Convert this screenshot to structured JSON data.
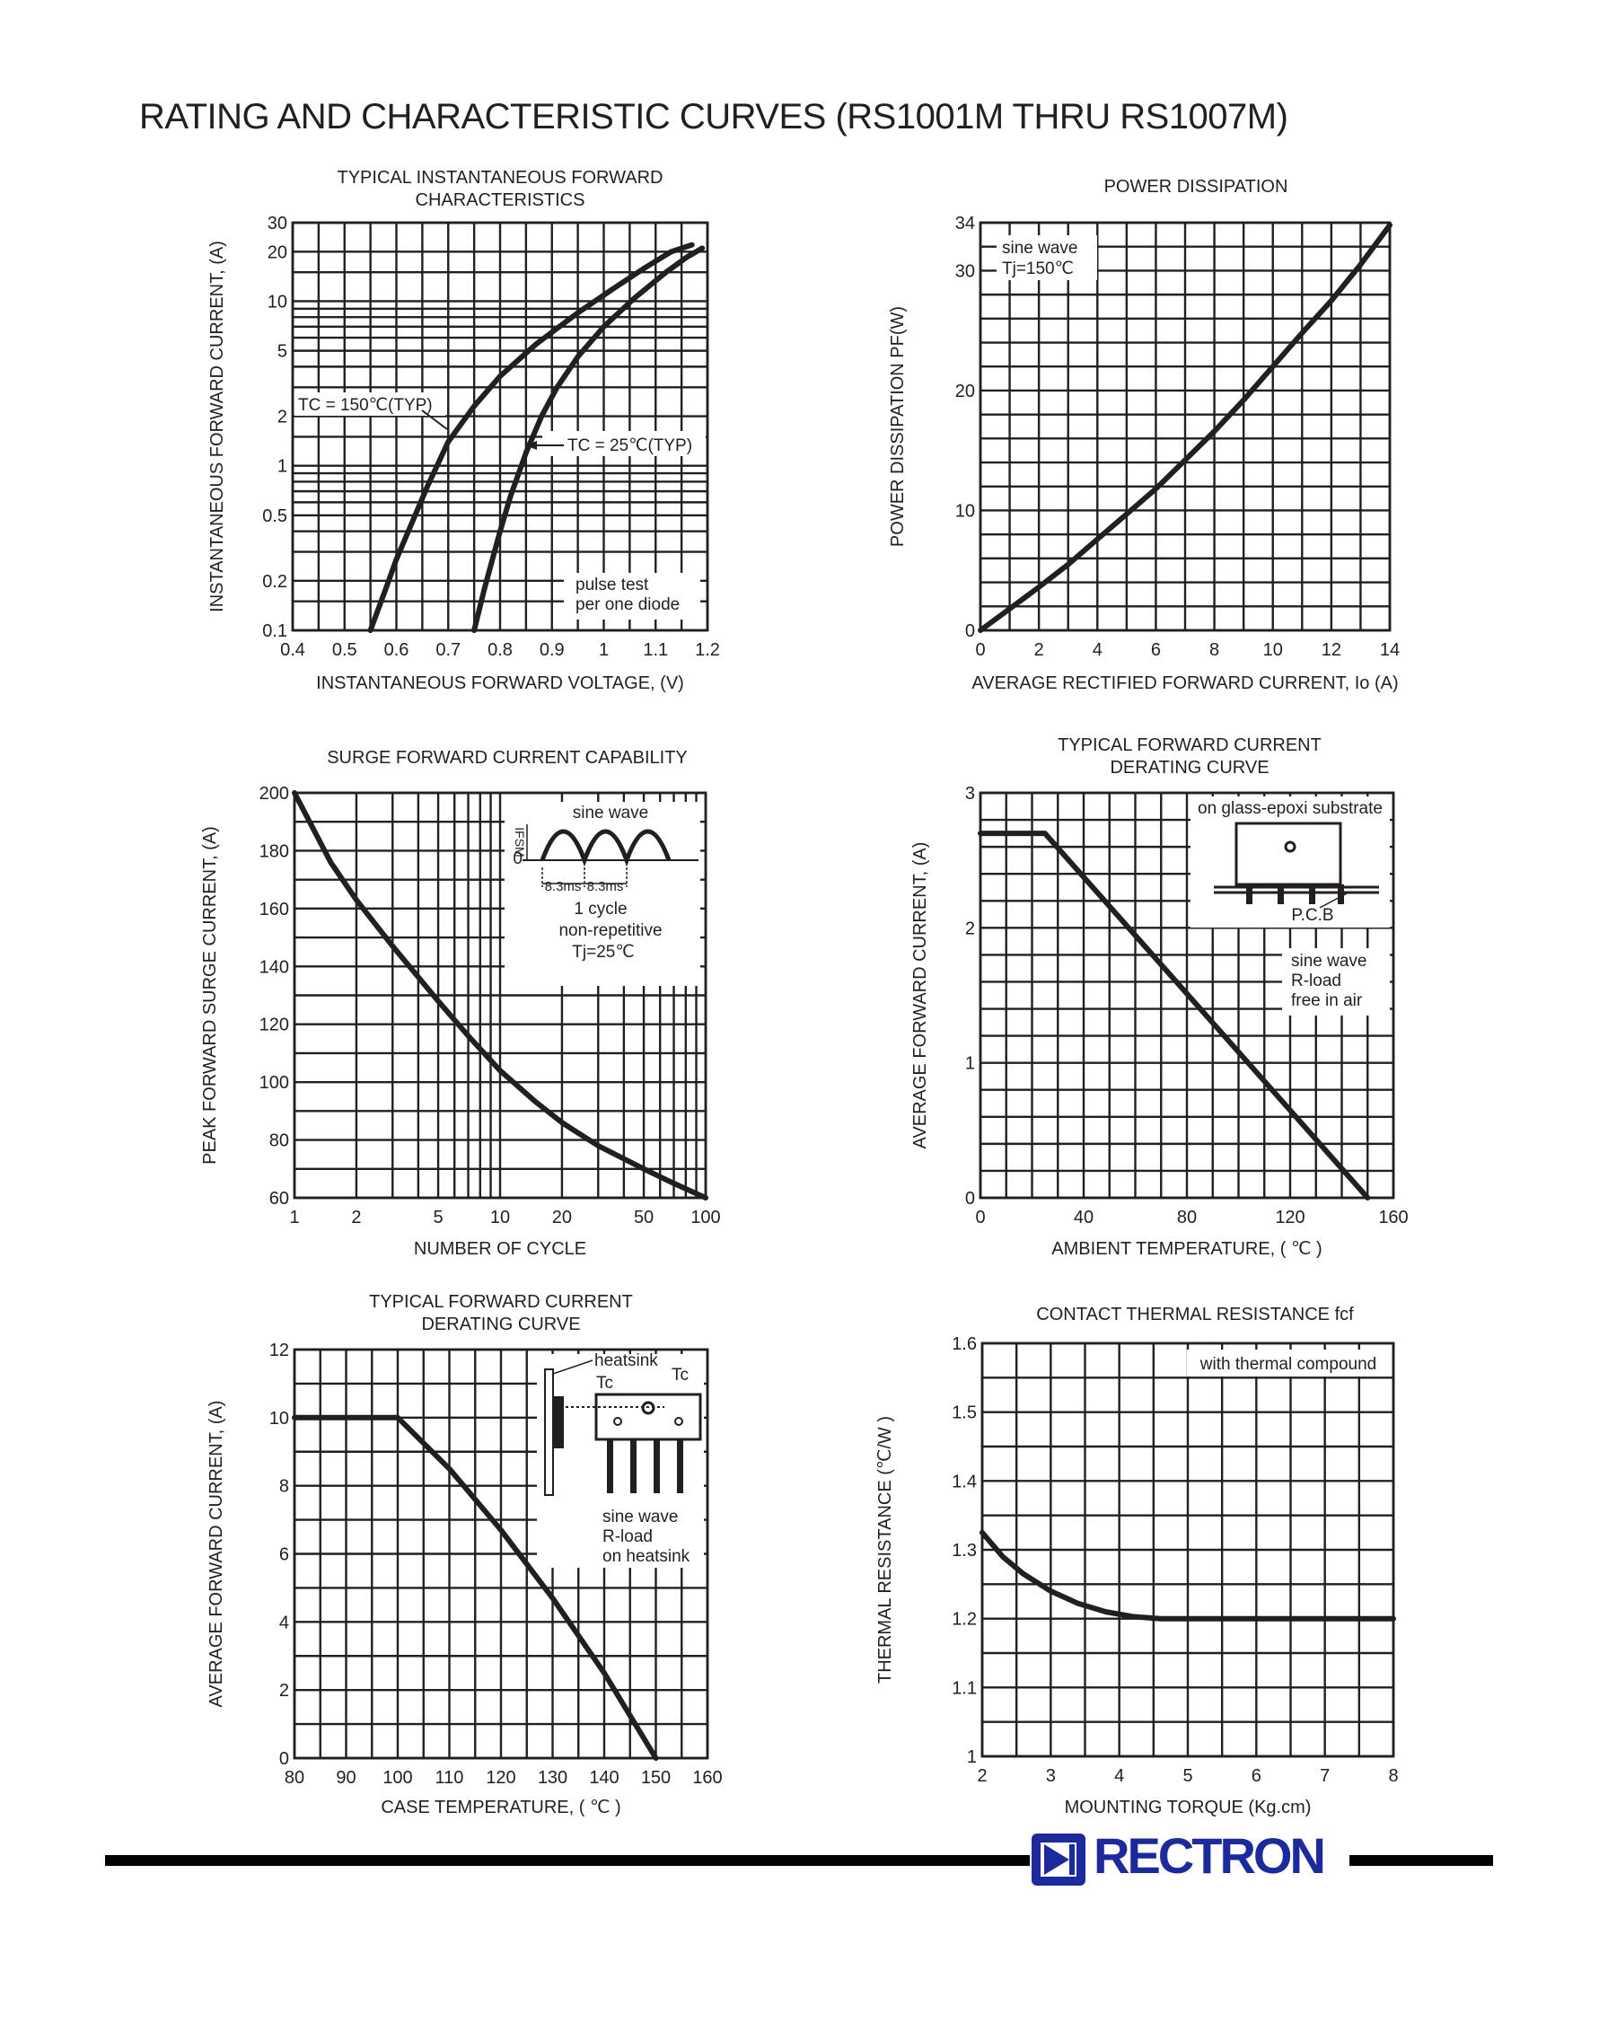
{
  "page": {
    "title": "RATING  AND CHARACTERISTIC CURVES (RS1001M THRU RS1007M)",
    "brand": "RECTRON",
    "brand_color": "#1d2a9e"
  },
  "chart_data": [
    {
      "id": "c1",
      "type": "line",
      "title_lines": [
        "TYPICAL INSTANTANEOUS FORWARD",
        "CHARACTERISTICS"
      ],
      "xlabel": "INSTANTANEOUS FORWARD VOLTAGE, (V)",
      "ylabel": "INSTANTANEOUS FORWARD CURRENT, (A)",
      "xscale": "linear",
      "yscale": "log",
      "xlim": [
        0.4,
        1.2
      ],
      "ylim": [
        0.1,
        30
      ],
      "xticks": [
        0.4,
        0.5,
        0.6,
        0.7,
        0.8,
        0.9,
        1.0,
        1.1,
        1.2
      ],
      "xtick_labels": [
        "0.4",
        "0.5",
        "0.6",
        "0.7",
        "0.8",
        "0.9",
        "1",
        "1.1",
        "1.2"
      ],
      "yticks": [
        0.1,
        0.2,
        0.5,
        1,
        2,
        5,
        10,
        20,
        30
      ],
      "ytick_labels": [
        "0.1",
        "0.2",
        "0.5",
        "1",
        "2",
        "5",
        "10",
        "20",
        "30"
      ],
      "vgrid": [
        0.4,
        0.45,
        0.5,
        0.55,
        0.6,
        0.65,
        0.7,
        0.75,
        0.8,
        0.85,
        0.9,
        0.95,
        1.0,
        1.05,
        1.1,
        1.15,
        1.2
      ],
      "hgrid": [
        0.1,
        0.15,
        0.2,
        0.3,
        0.4,
        0.5,
        0.6,
        0.7,
        0.8,
        0.9,
        1,
        1.5,
        2,
        3,
        4,
        5,
        6,
        7,
        8,
        9,
        10,
        15,
        20,
        30
      ],
      "series": [
        {
          "name": "TC = 150℃(TYP)",
          "x": [
            0.55,
            0.58,
            0.6,
            0.63,
            0.66,
            0.7,
            0.75,
            0.8,
            0.87,
            0.95,
            1.02,
            1.08,
            1.13,
            1.17
          ],
          "y": [
            0.1,
            0.18,
            0.27,
            0.45,
            0.75,
            1.4,
            2.3,
            3.5,
            5.5,
            8.5,
            12,
            16,
            20,
            22
          ]
        },
        {
          "name": "TC = 25℃(TYP)",
          "x": [
            0.75,
            0.77,
            0.8,
            0.82,
            0.85,
            0.88,
            0.91,
            0.95,
            1.0,
            1.06,
            1.12,
            1.16,
            1.19
          ],
          "y": [
            0.1,
            0.18,
            0.4,
            0.65,
            1.2,
            2.0,
            3.0,
            4.6,
            7.0,
            10.5,
            15,
            18.5,
            21
          ]
        }
      ],
      "annotations": [
        "pulse test",
        "per one diode"
      ]
    },
    {
      "id": "c2",
      "type": "line",
      "title_lines": [
        "POWER DISSIPATION"
      ],
      "xlabel": "AVERAGE RECTIFIED FORWARD CURRENT, Io (A)",
      "ylabel": "POWER DISSIPATION PF(W)",
      "xscale": "linear",
      "yscale": "linear",
      "xlim": [
        0,
        14
      ],
      "ylim": [
        0,
        34
      ],
      "xticks": [
        0,
        2,
        4,
        6,
        8,
        10,
        12,
        14
      ],
      "xtick_labels": [
        "0",
        "2",
        "4",
        "6",
        "8",
        "10",
        "12",
        "14"
      ],
      "yticks": [
        0,
        10,
        20,
        30,
        34
      ],
      "ytick_labels": [
        "0",
        "10",
        "20",
        "30",
        "34"
      ],
      "vgrid": [
        0,
        1,
        2,
        3,
        4,
        5,
        6,
        7,
        8,
        9,
        10,
        11,
        12,
        13,
        14
      ],
      "hgrid": [
        0,
        2,
        4,
        6,
        8,
        10,
        12,
        14,
        16,
        18,
        20,
        22,
        24,
        26,
        28,
        30,
        32,
        34
      ],
      "series": [
        {
          "name": "",
          "x": [
            0,
            1,
            2,
            3,
            4,
            5,
            6,
            7,
            8,
            9,
            10,
            11,
            12,
            13,
            14
          ],
          "y": [
            0,
            1.8,
            3.6,
            5.5,
            7.6,
            9.7,
            11.8,
            14.2,
            16.6,
            19.2,
            22.0,
            24.8,
            27.5,
            30.5,
            33.8
          ]
        }
      ],
      "annotations": [
        "sine wave",
        "Tj=150℃"
      ]
    },
    {
      "id": "c3",
      "type": "line",
      "title_lines": [
        "SURGE FORWARD CURRENT CAPABILITY"
      ],
      "xlabel": "NUMBER OF CYCLE",
      "ylabel": "PEAK FORWARD SURGE CURRENT, (A)",
      "xscale": "log",
      "yscale": "linear",
      "xlim": [
        1,
        100
      ],
      "ylim": [
        60,
        200
      ],
      "xticks": [
        1,
        2,
        5,
        10,
        20,
        50,
        100
      ],
      "xtick_labels": [
        "1",
        "2",
        "5",
        "10",
        "20",
        "50",
        "100"
      ],
      "yticks": [
        60,
        80,
        100,
        120,
        140,
        160,
        180,
        200
      ],
      "ytick_labels": [
        "60",
        "80",
        "100",
        "120",
        "140",
        "160",
        "180",
        "200"
      ],
      "vgrid": [
        1,
        2,
        3,
        4,
        5,
        6,
        7,
        8,
        9,
        10,
        20,
        30,
        40,
        50,
        60,
        70,
        80,
        90,
        100
      ],
      "hgrid": [
        60,
        70,
        80,
        90,
        100,
        110,
        120,
        130,
        140,
        150,
        160,
        170,
        180,
        190,
        200
      ],
      "series": [
        {
          "name": "",
          "x": [
            1,
            1.5,
            2,
            3,
            5,
            7,
            10,
            15,
            20,
            30,
            50,
            70,
            100
          ],
          "y": [
            200,
            176,
            163,
            147,
            128,
            116,
            104,
            93,
            86,
            78,
            70,
            65,
            60
          ]
        }
      ],
      "annotations": [
        "sine wave",
        "IFSM",
        "0",
        "8.3ms",
        "8.3ms",
        "1 cycle",
        "non-repetitive",
        "Tj=25℃"
      ]
    },
    {
      "id": "c4",
      "type": "line",
      "title_lines": [
        "TYPICAL FORWARD CURRENT",
        "DERATING CURVE"
      ],
      "xlabel": "AMBIENT TEMPERATURE, ( ℃ )",
      "ylabel": "AVERAGE FORWARD CURRENT, (A)",
      "xscale": "linear",
      "yscale": "linear",
      "xlim": [
        0,
        160
      ],
      "ylim": [
        0,
        3
      ],
      "xticks": [
        0,
        40,
        80,
        120,
        160
      ],
      "xtick_labels": [
        "0",
        "40",
        "80",
        "120",
        "160"
      ],
      "yticks": [
        0,
        1,
        2,
        3
      ],
      "ytick_labels": [
        "0",
        "1",
        "2",
        "3"
      ],
      "vgrid": [
        0,
        10,
        20,
        30,
        40,
        50,
        60,
        70,
        80,
        90,
        100,
        110,
        120,
        130,
        140,
        150,
        160
      ],
      "hgrid": [
        0,
        0.2,
        0.4,
        0.6,
        0.8,
        1.0,
        1.2,
        1.4,
        1.6,
        1.8,
        2.0,
        2.2,
        2.4,
        2.6,
        2.8,
        3.0
      ],
      "series": [
        {
          "name": "",
          "x": [
            0,
            25,
            150
          ],
          "y": [
            2.7,
            2.7,
            0
          ]
        }
      ],
      "annotations": [
        "on glass-epoxi substrate",
        "P.C.B",
        "sine wave",
        "R-load",
        "free in air"
      ]
    },
    {
      "id": "c5",
      "type": "line",
      "title_lines": [
        "TYPICAL FORWARD CURRENT",
        "DERATING CURVE"
      ],
      "xlabel": "CASE TEMPERATURE, ( ℃ )",
      "ylabel": "AVERAGE FORWARD CURRENT, (A)",
      "xscale": "linear",
      "yscale": "linear",
      "xlim": [
        80,
        160
      ],
      "ylim": [
        0,
        12
      ],
      "xticks": [
        80,
        90,
        100,
        110,
        120,
        130,
        140,
        150,
        160
      ],
      "xtick_labels": [
        "80",
        "90",
        "100",
        "110",
        "120",
        "130",
        "140",
        "150",
        "160"
      ],
      "yticks": [
        0,
        2,
        4,
        6,
        8,
        10,
        12
      ],
      "ytick_labels": [
        "0",
        "2",
        "4",
        "6",
        "8",
        "10",
        "12"
      ],
      "vgrid": [
        80,
        85,
        90,
        95,
        100,
        105,
        110,
        115,
        120,
        125,
        130,
        135,
        140,
        145,
        150,
        155,
        160
      ],
      "hgrid": [
        0,
        1,
        2,
        3,
        4,
        5,
        6,
        7,
        8,
        9,
        10,
        11,
        12
      ],
      "series": [
        {
          "name": "",
          "x": [
            80,
            100,
            110,
            120,
            130,
            140,
            150
          ],
          "y": [
            10,
            10,
            8.5,
            6.7,
            4.7,
            2.5,
            0
          ]
        }
      ],
      "annotations": [
        "heatsink",
        "Tc",
        "Tc",
        "sine wave",
        "R-load",
        "on heatsink"
      ]
    },
    {
      "id": "c6",
      "type": "line",
      "title_lines": [
        "CONTACT THERMAL RESISTANCE fcf"
      ],
      "xlabel": "MOUNTING TORQUE (Kg.cm)",
      "ylabel": "THERMAL RESISTANCE (℃/W )",
      "xscale": "linear",
      "yscale": "linear",
      "xlim": [
        2,
        8
      ],
      "ylim": [
        1.0,
        1.6
      ],
      "xticks": [
        2,
        3,
        4,
        5,
        6,
        7,
        8
      ],
      "xtick_labels": [
        "2",
        "3",
        "4",
        "5",
        "6",
        "7",
        "8"
      ],
      "yticks": [
        1.0,
        1.1,
        1.2,
        1.3,
        1.4,
        1.5,
        1.6
      ],
      "ytick_labels": [
        "1",
        "1.1",
        "1.2",
        "1.3",
        "1.4",
        "1.5",
        "1.6"
      ],
      "vgrid": [
        2,
        2.5,
        3,
        3.5,
        4,
        4.5,
        5,
        5.5,
        6,
        6.5,
        7,
        7.5,
        8
      ],
      "hgrid": [
        1.0,
        1.05,
        1.1,
        1.15,
        1.2,
        1.25,
        1.3,
        1.35,
        1.4,
        1.45,
        1.5,
        1.55,
        1.6
      ],
      "series": [
        {
          "name": "",
          "x": [
            2,
            2.3,
            2.6,
            3,
            3.4,
            3.8,
            4.2,
            4.6,
            5,
            8
          ],
          "y": [
            1.325,
            1.29,
            1.265,
            1.24,
            1.222,
            1.21,
            1.203,
            1.2,
            1.2,
            1.2
          ]
        }
      ],
      "annotations": [
        "with thermal compound"
      ]
    }
  ]
}
